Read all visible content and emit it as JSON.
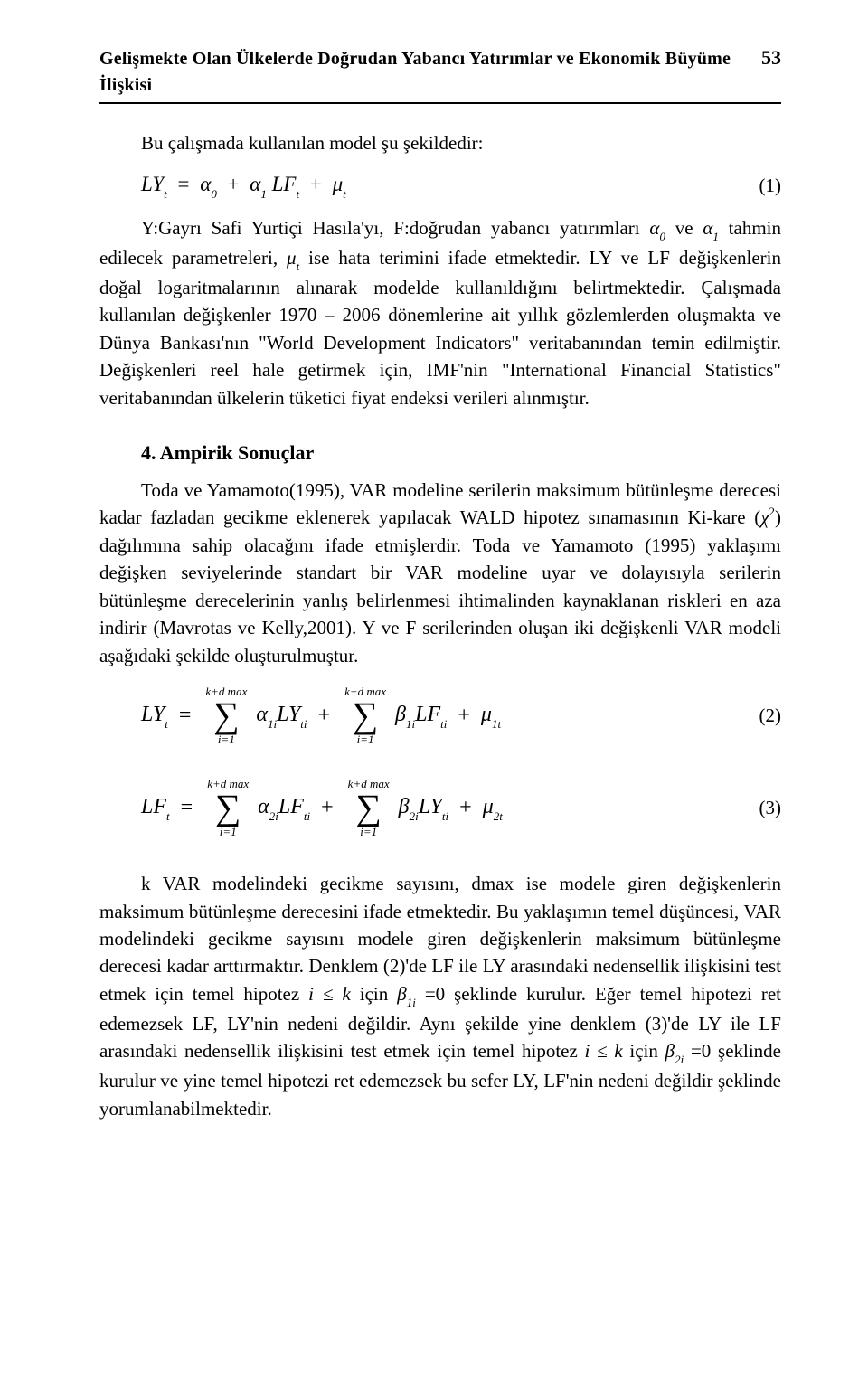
{
  "header": {
    "running_title": "Gelişmekte Olan Ülkelerde Doğrudan Yabancı Yatırımlar ve Ekonomik Büyüme İlişkisi",
    "page_number": "53"
  },
  "intro": {
    "line1": "Bu çalışmada kullanılan model şu şekildedir:"
  },
  "eq1": {
    "lhs": "LY",
    "lhs_sub": "t",
    "equals": "=",
    "a0": "α",
    "a0_sub": "0",
    "plus1": "+",
    "a1": "α",
    "a1_sub": "1",
    "lf": "LF",
    "lf_sub": "t",
    "plus2": "+",
    "mu": "μ",
    "mu_sub": "t",
    "num": "(1)"
  },
  "para2_a": "Y:Gayrı Safi Yurtiçi Hasıla'yı, F:doğrudan yabancı yatırımları ",
  "para2_a0": "α",
  "para2_a0s": "0",
  "para2_ve": " ve ",
  "para2_a1": "α",
  "para2_a1s": "1",
  "para2_b": "tahmin edilecek parametreleri, ",
  "para2_mu": "μ",
  "para2_mus": "t",
  "para2_c": " ise hata terimini ifade etmektedir. LY ve LF değişkenlerin doğal logaritmalarının alınarak modelde kullanıldığını belirtmektedir. Çalışmada kullanılan değişkenler 1970 – 2006 dönemlerine ait yıllık gözlemlerden oluşmakta ve Dünya Bankası'nın \"World Development Indicators\" veritabanından temin edilmiştir. Değişkenleri reel hale getirmek için, IMF'nin \"International Financial Statistics\" veritabanından ülkelerin tüketici fiyat endeksi verileri alınmıştır.",
  "section4": {
    "heading": "4. Ampirik Sonuçlar",
    "p1a": "Toda ve Yamamoto(1995), VAR modeline serilerin maksimum bütünleşme derecesi kadar fazladan gecikme eklenerek yapılacak WALD hipotez sınamasının Ki-kare (",
    "chi": "χ",
    "chis": "2",
    "p1b": ") dağılımına sahip olacağını ifade etmişlerdir. Toda ve Yamamoto (1995) yaklaşımı değişken seviyelerinde standart bir VAR modeline uyar ve dolayısıyla serilerin bütünleşme derecelerinin yanlış belirlenmesi ihtimalinden kaynaklanan riskleri en aza indirir (Mavrotas ve Kelly,2001). Y ve F serilerinden oluşan iki değişkenli VAR modeli aşağıdaki şekilde oluşturulmuştur."
  },
  "eq2": {
    "lhs": "LY",
    "lhs_sub": "t",
    "eq": "=",
    "top": "k+d max",
    "bot": "i=1",
    "c1": "α",
    "c1s": "1i",
    "v1": "LY",
    "v1s": "ti",
    "plus1": "+",
    "c2": "β",
    "c2s": "1i",
    "v2": "LF",
    "v2s": "ti",
    "plus2": "+",
    "mu": "μ",
    "mus": "1t",
    "num": "(2)"
  },
  "eq3": {
    "lhs": "LF",
    "lhs_sub": "t",
    "eq": "=",
    "top": "k+d max",
    "bot": "i=1",
    "c1": "α",
    "c1s": "2i",
    "v1": "LF",
    "v1s": "ti",
    "plus1": "+",
    "c2": "β",
    "c2s": "2i",
    "v2": "LY",
    "v2s": "ti",
    "plus2": "+",
    "mu": "μ",
    "mus": "2t",
    "num": "(3)"
  },
  "para_last_a": "k VAR modelindeki gecikme sayısını, dmax ise modele giren değişkenlerin maksimum bütünleşme derecesini ifade etmektedir. Bu yaklaşımın temel düşüncesi, VAR modelindeki gecikme sayısını modele giren değişkenlerin maksimum bütünleşme derecesi kadar arttırmaktır. Denklem (2)'de LF ile LY arasındaki nedensellik ilişkisini test etmek için temel hipotez ",
  "ik1": "i ≤ k",
  "para_last_b": " için ",
  "b1": "β",
  "b1s": "1i",
  "para_last_c": " =0 şeklinde kurulur. Eğer temel hipotezi ret edemezsek LF, LY'nin nedeni değildir. Aynı şekilde yine denklem (3)'de LY ile LF arasındaki nedensellik ilişkisini test etmek için temel hipotez ",
  "ik2": "i ≤ k",
  "para_last_d": " için ",
  "b2": "β",
  "b2s": "2i",
  "para_last_e": " =0 şeklinde kurulur ve yine temel hipotezi ret edemezsek bu sefer LY, LF'nin nedeni değildir şeklinde yorumlanabilmektedir."
}
